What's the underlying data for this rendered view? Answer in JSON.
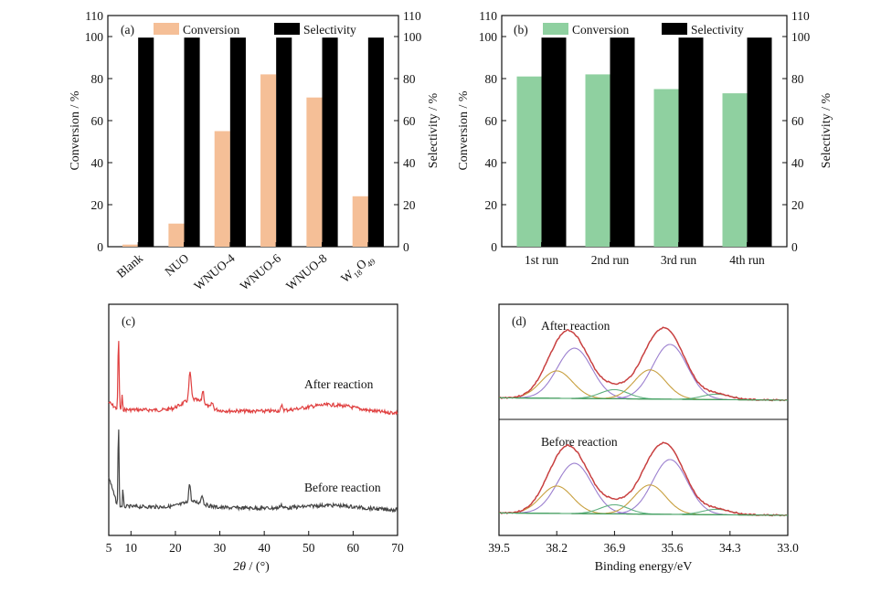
{
  "chart_data": [
    {
      "id": "a",
      "type": "bar",
      "panel_label": "(a)",
      "categories": [
        "Blank",
        "NUO",
        "WNUO-4",
        "WNUO-6",
        "WNUO-8",
        "W18O49"
      ],
      "series": [
        {
          "name": "Conversion",
          "values": [
            1,
            11,
            55,
            82,
            71,
            24
          ],
          "color": "#f5bf97"
        },
        {
          "name": "Selectivity",
          "values": [
            99.5,
            99.5,
            99.5,
            99.5,
            99.5,
            99.5
          ],
          "color": "#000000"
        }
      ],
      "ylabel": "Conversion / %",
      "ylabel_right": "Selectivity / %",
      "ylim": [
        0,
        110
      ],
      "yticks": [
        "0",
        "20",
        "40",
        "60",
        "80",
        "100",
        "110"
      ],
      "legend": "top"
    },
    {
      "id": "b",
      "type": "bar",
      "panel_label": "(b)",
      "categories": [
        "1st run",
        "2nd run",
        "3rd run",
        "4th run"
      ],
      "series": [
        {
          "name": "Conversion",
          "values": [
            81,
            82,
            75,
            73
          ],
          "color": "#8fd0a0"
        },
        {
          "name": "Selectivity",
          "values": [
            99.5,
            99.5,
            99.5,
            99.5
          ],
          "color": "#000000"
        }
      ],
      "ylabel": "Conversion / %",
      "ylabel_right": "Selectivity / %",
      "ylim": [
        0,
        110
      ],
      "yticks": [
        "0",
        "20",
        "40",
        "60",
        "80",
        "100",
        "110"
      ],
      "legend": "top"
    },
    {
      "id": "c",
      "type": "line",
      "panel_label": "(c)",
      "xlabel_italic": "2θ",
      "xlabel_rest": " / (°)",
      "xlim": [
        5,
        70
      ],
      "xticks": [
        "5",
        "10",
        "20",
        "30",
        "40",
        "50",
        "60",
        "70"
      ],
      "series": [
        {
          "name": "After reaction",
          "color": "#e04040"
        },
        {
          "name": "Before reaction",
          "color": "#444444"
        }
      ]
    },
    {
      "id": "d",
      "type": "line",
      "panel_label": "(d)",
      "xlabel": "Binding energy/eV",
      "xlim": [
        39.5,
        33.0
      ],
      "xticks": [
        "39.5",
        "38.2",
        "36.9",
        "35.6",
        "34.3",
        "33.0"
      ],
      "series": [
        {
          "name": "After reaction",
          "color": "#d04040"
        },
        {
          "name": "Before reaction",
          "color": "#d04040"
        }
      ]
    }
  ]
}
